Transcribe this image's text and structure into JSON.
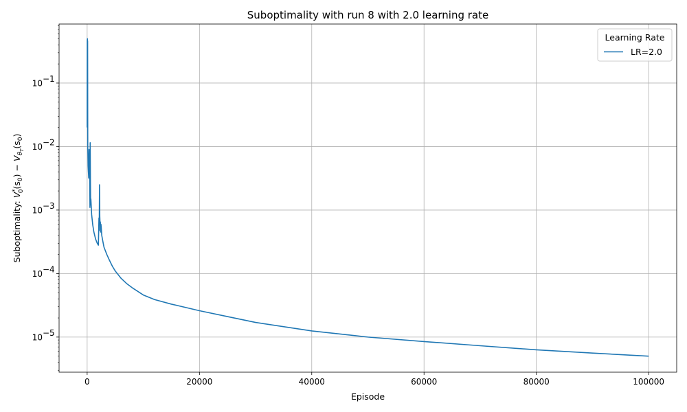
{
  "chart_data": {
    "type": "line",
    "title": "Suboptimality with run 8 with 2.0 learning rate",
    "xlabel": "Episode",
    "ylabel": {
      "prefix": "Suboptimality: ",
      "v_star": "V",
      "v_star_sup": "*",
      "v_star_sub": "0",
      "arg1": "(s",
      "arg1_sub": "0",
      "minus": ") − ",
      "v_theta": "V",
      "v_theta_sub": "θ",
      "v_theta_subsub": "T",
      "arg2": "(s",
      "arg2_sub": "0",
      "close": ")"
    },
    "xlim": [
      -5000,
      105000
    ],
    "yscale": "log",
    "ylim": [
      2.8e-06,
      0.85
    ],
    "grid": true,
    "x_ticks": [
      0,
      20000,
      40000,
      60000,
      80000,
      100000
    ],
    "x_tick_labels": [
      "0",
      "20000",
      "40000",
      "60000",
      "80000",
      "100000"
    ],
    "y_ticks": [
      1e-05,
      0.0001,
      0.001,
      0.01,
      0.1
    ],
    "y_tick_labels": [
      {
        "base": "10",
        "exp": "−5"
      },
      {
        "base": "10",
        "exp": "−4"
      },
      {
        "base": "10",
        "exp": "−3"
      },
      {
        "base": "10",
        "exp": "−2"
      },
      {
        "base": "10",
        "exp": "−1"
      }
    ],
    "legend": {
      "title": "Learning Rate",
      "placement": "top-right",
      "entries": [
        {
          "label": "LR=2.0",
          "color": "#1f77b4"
        }
      ]
    },
    "series": [
      {
        "name": "LR=2.0",
        "color": "#1f77b4",
        "x": [
          0,
          20,
          40,
          60,
          80,
          100,
          110,
          130,
          170,
          220,
          280,
          340,
          400,
          460,
          500,
          540,
          580,
          620,
          660,
          700,
          800,
          1000,
          1200,
          1500,
          1800,
          2000,
          2100,
          2150,
          2200,
          2250,
          2300,
          2350,
          2400,
          2450,
          2500,
          2600,
          2800,
          3000,
          3500,
          4000,
          4500,
          5000,
          6000,
          7000,
          8000,
          10000,
          12000,
          15000,
          20000,
          25000,
          30000,
          40000,
          50000,
          60000,
          70000,
          80000,
          90000,
          100000
        ],
        "y": [
          0.02,
          0.47,
          0.5,
          0.45,
          0.46,
          0.025,
          0.01,
          0.008,
          0.005,
          0.004,
          0.0032,
          0.009,
          0.004,
          0.003,
          0.0011,
          0.0115,
          0.003,
          0.0012,
          0.0015,
          0.0013,
          0.00085,
          0.00058,
          0.00045,
          0.00035,
          0.0003,
          0.00028,
          0.00075,
          0.00048,
          0.0025,
          0.0008,
          0.0006,
          0.00065,
          0.00045,
          0.0006,
          0.00055,
          0.0004,
          0.00032,
          0.00026,
          0.0002,
          0.00016,
          0.00013,
          0.00011,
          8.5e-05,
          7e-05,
          6e-05,
          4.6e-05,
          3.9e-05,
          3.3e-05,
          2.6e-05,
          2.1e-05,
          1.7e-05,
          1.25e-05,
          1e-05,
          8.5e-06,
          7.3e-06,
          6.3e-06,
          5.6e-06,
          5e-06
        ]
      }
    ]
  }
}
